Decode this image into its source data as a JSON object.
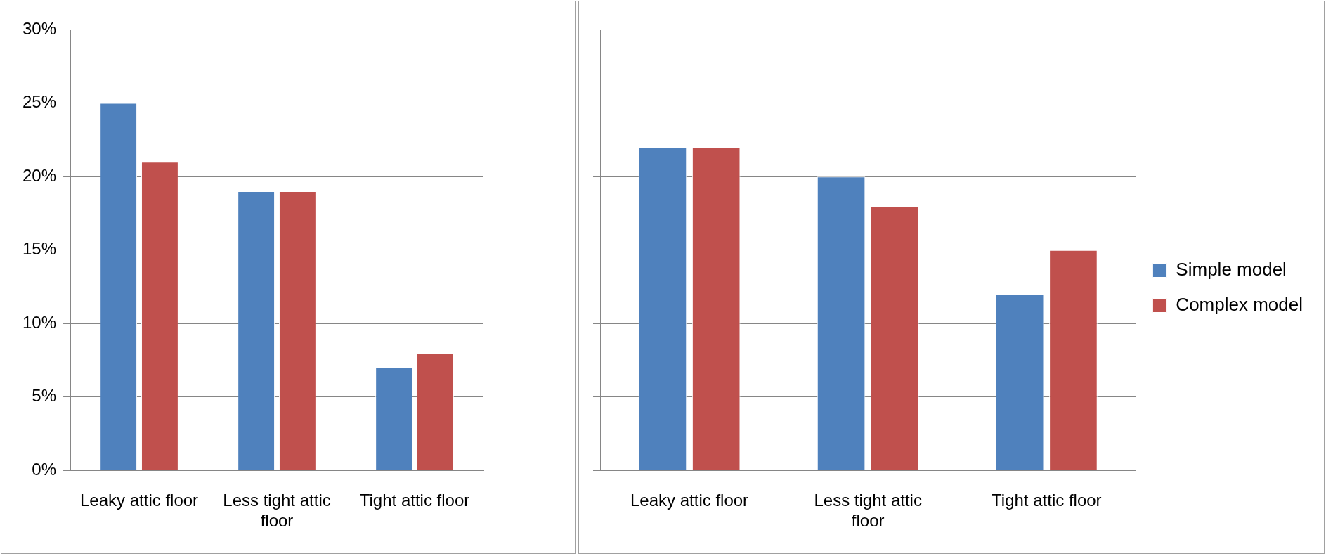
{
  "chart_data": [
    {
      "type": "bar",
      "categories": [
        "Leaky attic floor",
        "Less tight attic floor",
        "Tight attic floor"
      ],
      "series": [
        {
          "color": "#4f81bd",
          "values": [
            25,
            19,
            7
          ]
        },
        {
          "color": "#c0504d",
          "values": [
            21,
            19,
            8
          ]
        }
      ],
      "ylim": [
        0,
        30
      ],
      "yticks": [
        {
          "value": 0,
          "label": "0%"
        },
        {
          "value": 5,
          "label": "5%"
        },
        {
          "value": 10,
          "label": "10%"
        },
        {
          "value": 15,
          "label": "15%"
        },
        {
          "value": 20,
          "label": "20%"
        },
        {
          "value": 25,
          "label": "25%"
        },
        {
          "value": 30,
          "label": "30%"
        }
      ],
      "grid": "y",
      "legend": false
    },
    {
      "type": "bar",
      "categories": [
        "Leaky attic floor",
        "Less tight attic floor",
        "Tight attic floor"
      ],
      "series": [
        {
          "name": "Simple model",
          "color": "#4f81bd",
          "values": [
            22,
            20,
            12
          ]
        },
        {
          "name": "Complex model",
          "color": "#c0504d",
          "values": [
            22,
            18,
            15
          ]
        }
      ],
      "ylim": [
        0,
        30
      ],
      "yticks": [
        {
          "value": 0,
          "label": null
        },
        {
          "value": 5,
          "label": null
        },
        {
          "value": 10,
          "label": null
        },
        {
          "value": 15,
          "label": null
        },
        {
          "value": 20,
          "label": null
        },
        {
          "value": 25,
          "label": null
        },
        {
          "value": 30,
          "label": null
        }
      ],
      "grid": "y",
      "legend": "right",
      "tick_labels": "x"
    }
  ]
}
